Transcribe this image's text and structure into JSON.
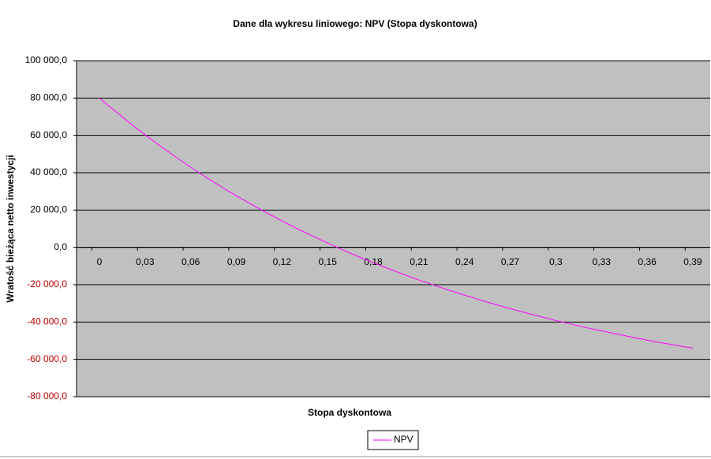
{
  "chart_data": {
    "type": "line",
    "title": "Dane dla wykresu liniowego: NPV (Stopa dyskontowa)",
    "x_label": "Stopa dyskontowa",
    "y_label": "Wratość bieżąca netto inwestycji",
    "categories": [
      "0",
      null,
      null,
      "0,03",
      null,
      null,
      "0,06",
      null,
      null,
      "0,09",
      null,
      null,
      "0,12",
      null,
      null,
      "0,15",
      null,
      null,
      "0,18",
      null,
      null,
      "0,21",
      null,
      null,
      "0,24",
      null,
      null,
      "0,27",
      null,
      null,
      "0,3",
      null,
      null,
      "0,33",
      null,
      null,
      "0,36",
      null,
      null,
      "0,39"
    ],
    "series": [
      {
        "name": "NPV",
        "color": "#ff00ff",
        "values": [
          80000,
          73200,
          66600,
          60300,
          54300,
          48500,
          42900,
          37600,
          32500,
          27600,
          23000,
          18500,
          14200,
          10000,
          6100,
          2300,
          -1400,
          -4900,
          -8200,
          -11400,
          -14500,
          -17500,
          -20300,
          -23000,
          -25600,
          -28100,
          -30500,
          -32800,
          -35000,
          -37100,
          -39200,
          -41100,
          -43000,
          -44700,
          -46400,
          -48100,
          -49700,
          -51200,
          -52600,
          -54000
        ]
      }
    ],
    "ylim": [
      -80000,
      100000
    ],
    "yticks": [
      {
        "value": -80000,
        "label": "-80 000,0"
      },
      {
        "value": -60000,
        "label": "-60 000,0"
      },
      {
        "value": -40000,
        "label": "-40 000,0"
      },
      {
        "value": -20000,
        "label": "-20 000,0"
      },
      {
        "value": 0,
        "label": "0,0"
      },
      {
        "value": 20000,
        "label": "20 000,0"
      },
      {
        "value": 40000,
        "label": "40 000,0"
      },
      {
        "value": 60000,
        "label": "60 000,0"
      },
      {
        "value": 80000,
        "label": "80 000,0"
      },
      {
        "value": 100000,
        "label": "100 000,0"
      }
    ],
    "negative_tick_color": "#c00000",
    "plot_background": "#c0c0c0",
    "grid": true
  }
}
